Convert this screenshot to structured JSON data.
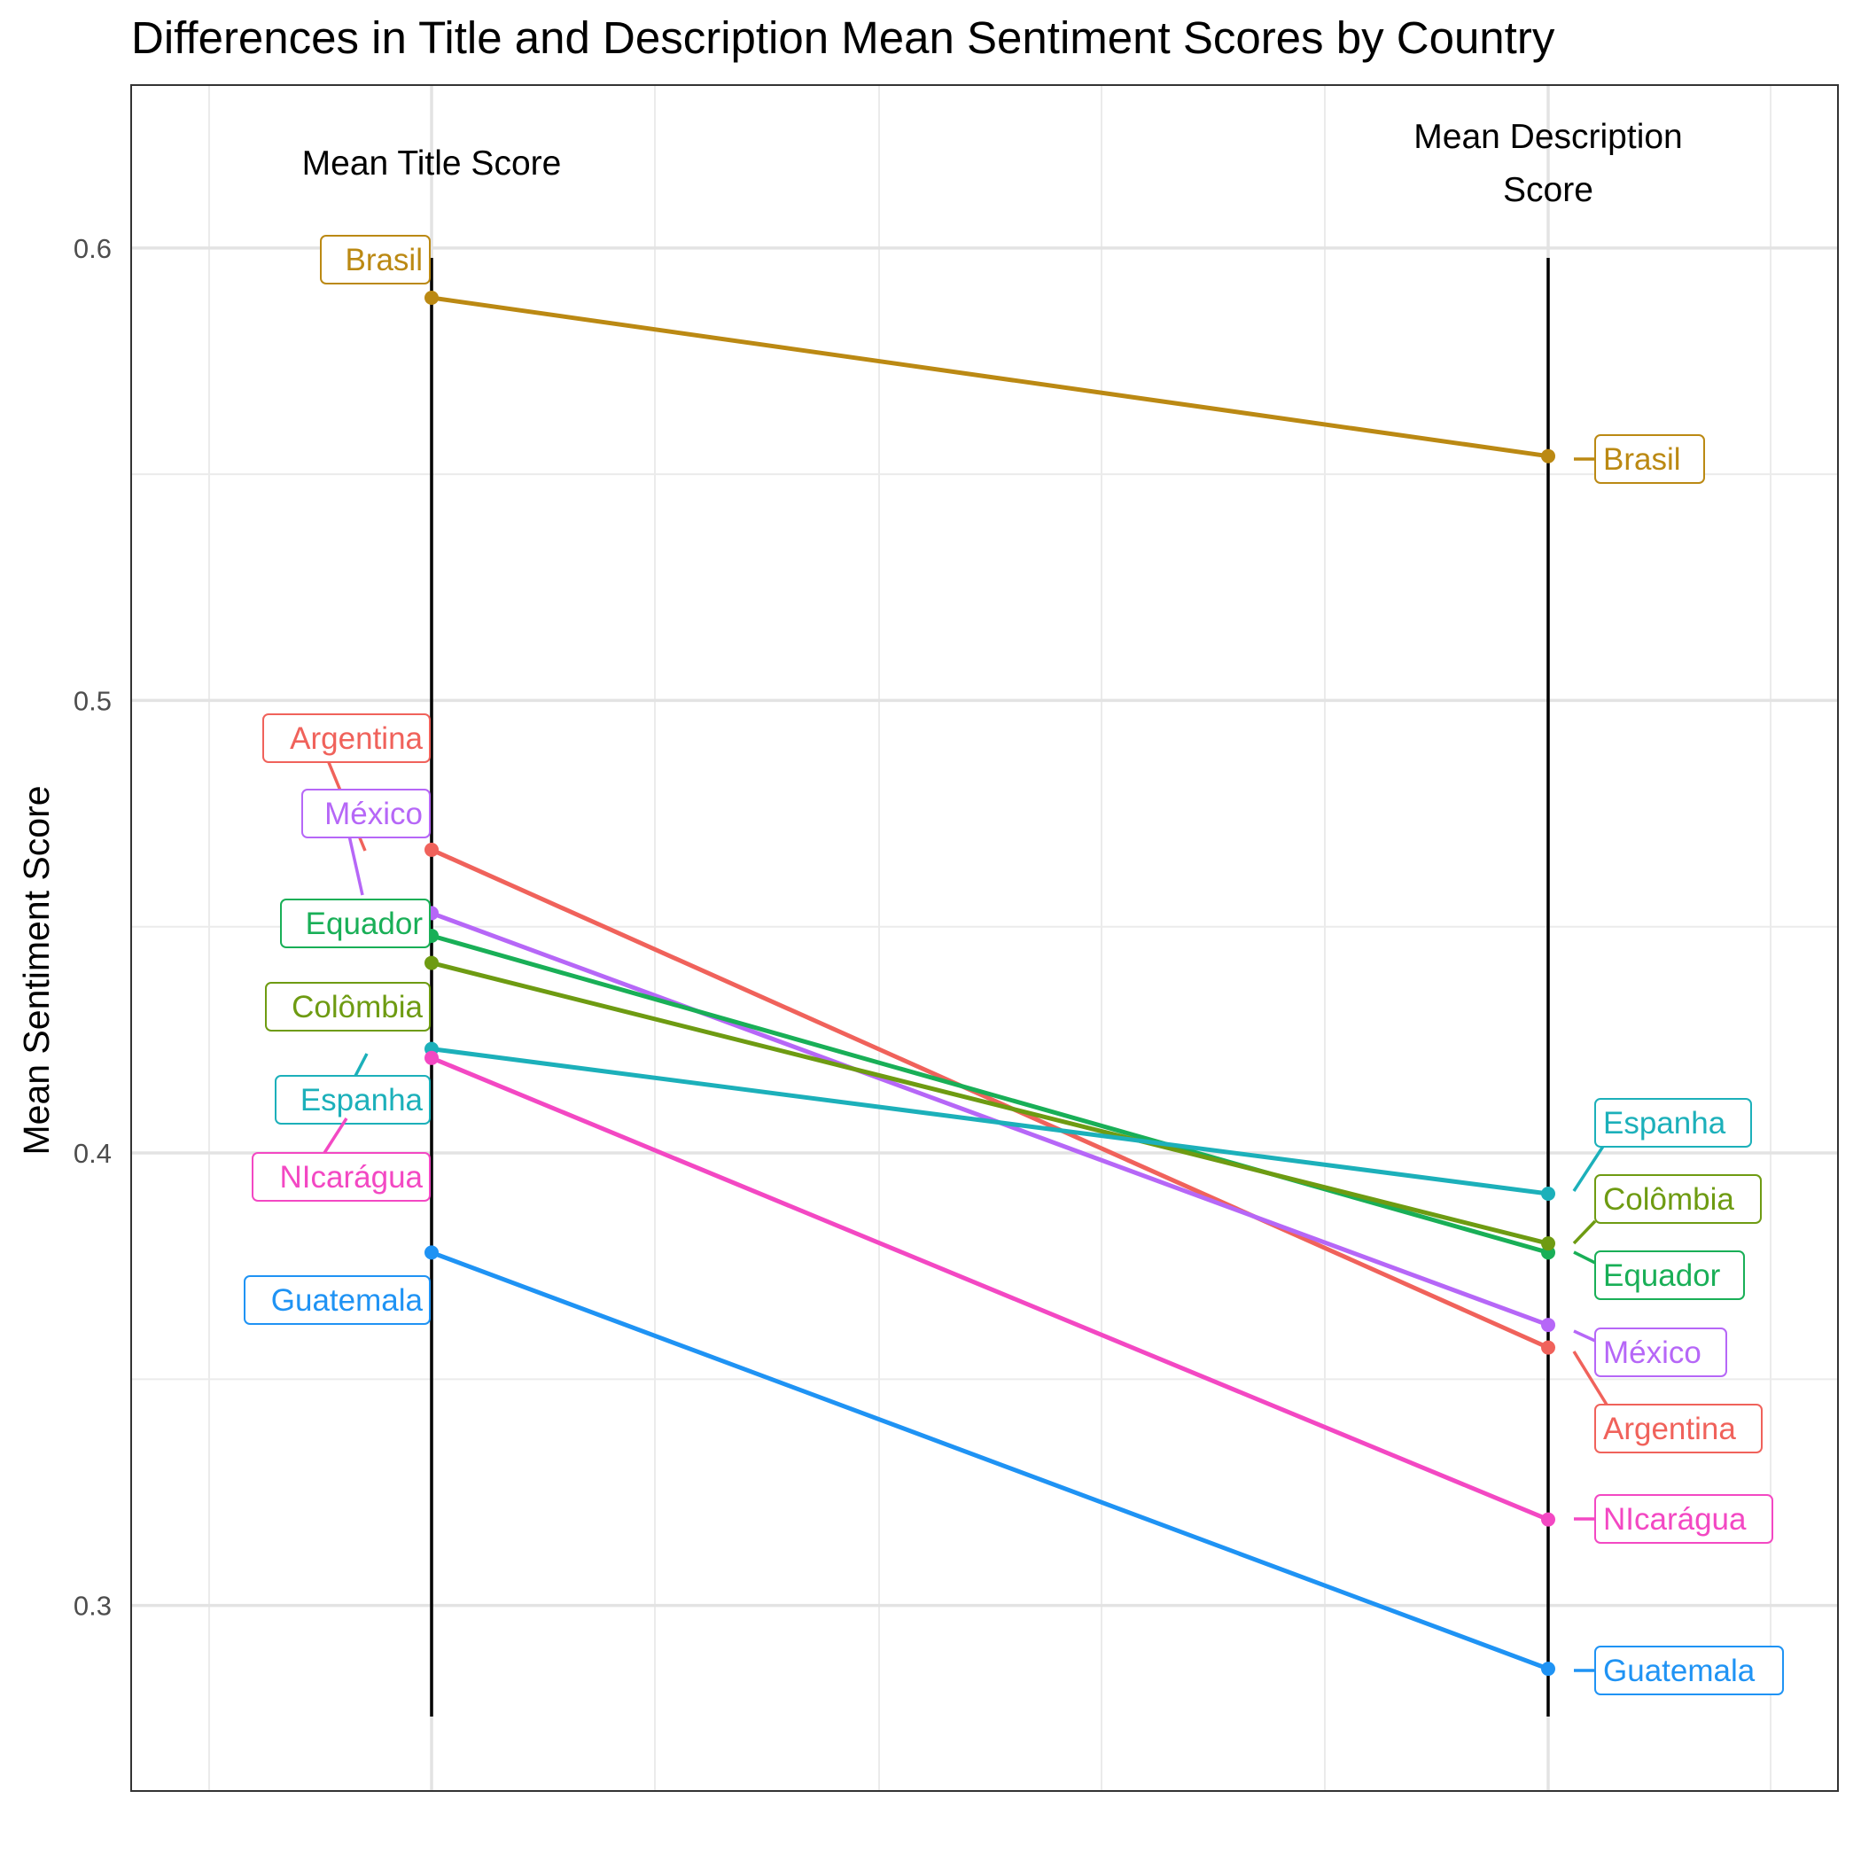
{
  "chart_data": {
    "type": "line",
    "title": "Differences in Title and Description Mean Sentiment Scores by Country",
    "xlabel": "",
    "ylabel": "Mean Sentiment Score",
    "ylim": [
      0.259,
      0.636
    ],
    "y_ticks": [
      0.3,
      0.4,
      0.5,
      0.6
    ],
    "y_tick_labels": [
      "0.3",
      "0.4",
      "0.5",
      "0.6"
    ],
    "grid": true,
    "x_axis_headers": [
      "Mean Title Score",
      "Mean Description Score"
    ],
    "x": [
      "Mean Title Score",
      "Mean Description Score"
    ],
    "series": [
      {
        "name": "Brasil",
        "color": "#BB8913",
        "values": [
          0.589,
          0.554
        ]
      },
      {
        "name": "Argentina",
        "color": "#F0625B",
        "values": [
          0.467,
          0.357
        ]
      },
      {
        "name": "México",
        "color": "#B667F7",
        "values": [
          0.453,
          0.362
        ]
      },
      {
        "name": "Equador",
        "color": "#19AF57",
        "values": [
          0.448,
          0.378
        ]
      },
      {
        "name": "Colômbia",
        "color": "#6E9B12",
        "values": [
          0.442,
          0.38
        ]
      },
      {
        "name": "Espanha",
        "color": "#1CB0BA",
        "values": [
          0.423,
          0.391
        ]
      },
      {
        "name": "NIcarágua",
        "color": "#F348C3",
        "values": [
          0.421,
          0.319
        ]
      },
      {
        "name": "Guatemala",
        "color": "#1F93F4",
        "values": [
          0.378,
          0.286
        ]
      }
    ]
  }
}
